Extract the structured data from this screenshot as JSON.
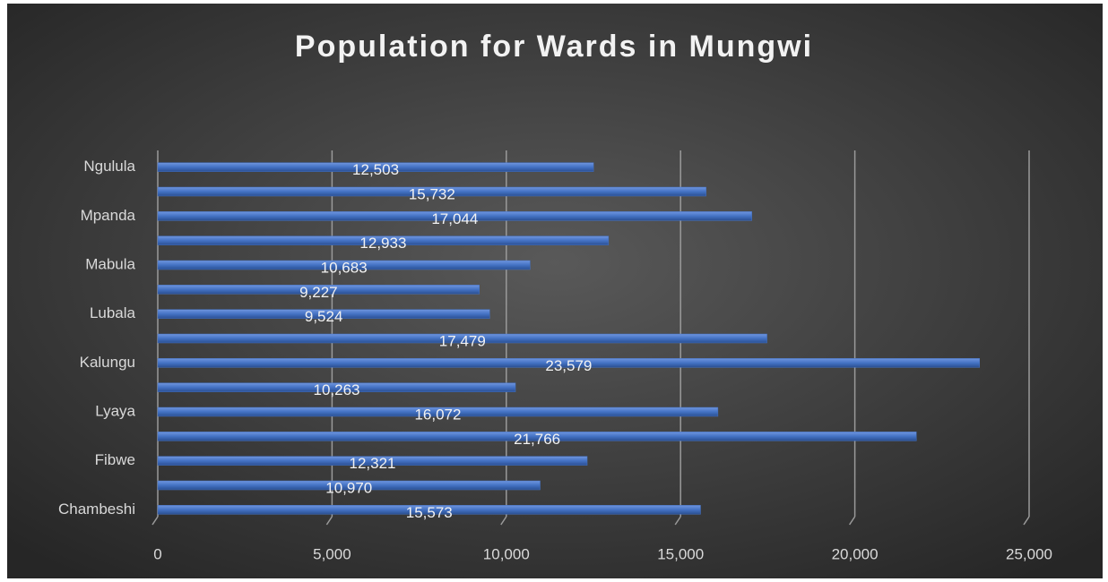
{
  "chart_data": {
    "type": "bar",
    "orientation": "horizontal",
    "title": "Population for Wards in Mungwi",
    "categories": [
      "Chambeshi",
      null,
      "Fibwe",
      null,
      "Lyaya",
      null,
      "Kalungu",
      null,
      "Lubala",
      null,
      "Mabula",
      null,
      "Mpanda",
      null,
      "Ngulula"
    ],
    "values": [
      15573,
      10970,
      12321,
      21766,
      16072,
      10263,
      23579,
      17479,
      9524,
      9227,
      10683,
      12933,
      17044,
      15732,
      12503
    ],
    "value_labels": [
      "15,573",
      "10,970",
      "12,321",
      "21,766",
      "16,072",
      "10,263",
      "23,579",
      "17,479",
      "9,524",
      "9,227",
      "10,683",
      "12,933",
      "17,044",
      "15,732",
      "12,503"
    ],
    "color": "#4472c4",
    "xlim": [
      0,
      25000
    ],
    "xticks": [
      0,
      {
        "value": 5000,
        "label": "5,000"
      },
      {
        "value": 10000,
        "label": "10,000"
      },
      {
        "value": 15000,
        "label": "15,000"
      },
      {
        "value": 20000,
        "label": "20,000"
      },
      {
        "value": 25000,
        "label": "25,000"
      }
    ],
    "grid": true
  }
}
